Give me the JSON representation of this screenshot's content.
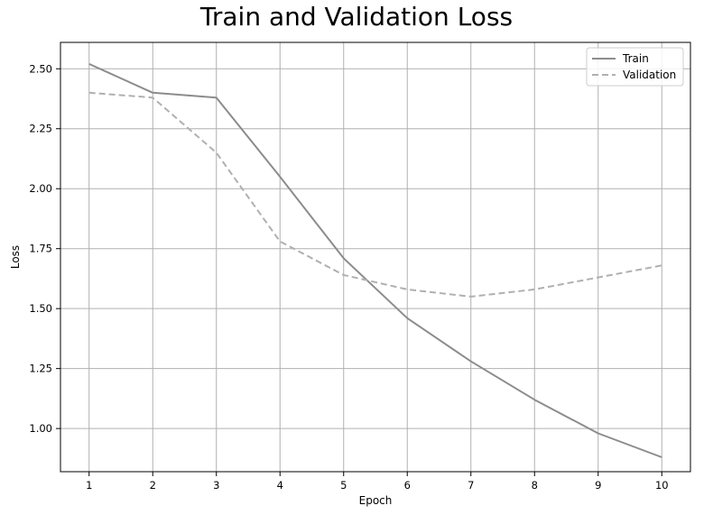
{
  "chart_data": {
    "type": "line",
    "title": "Train and Validation Loss",
    "xlabel": "Epoch",
    "ylabel": "Loss",
    "x": [
      1,
      2,
      3,
      4,
      5,
      6,
      7,
      8,
      9,
      10
    ],
    "xlim": [
      0.55,
      10.45
    ],
    "ylim": [
      0.82,
      2.61
    ],
    "x_ticks": [
      "1",
      "2",
      "3",
      "4",
      "5",
      "6",
      "7",
      "8",
      "9",
      "10"
    ],
    "y_ticks": [
      1.0,
      1.25,
      1.5,
      1.75,
      2.0,
      2.25,
      2.5
    ],
    "y_tick_labels": [
      "1.00",
      "1.25",
      "1.50",
      "1.75",
      "2.00",
      "2.25",
      "2.50"
    ],
    "grid": true,
    "legend_position": "top-right",
    "series": [
      {
        "name": "Train",
        "style": "solid",
        "color": "#8c8c8c",
        "values": [
          2.52,
          2.4,
          2.38,
          2.05,
          1.71,
          1.46,
          1.28,
          1.12,
          0.98,
          0.88
        ]
      },
      {
        "name": "Validation",
        "style": "dashed",
        "color": "#b0b0b0",
        "values": [
          2.4,
          2.38,
          2.15,
          1.78,
          1.64,
          1.58,
          1.55,
          1.58,
          1.63,
          1.68
        ]
      }
    ]
  }
}
